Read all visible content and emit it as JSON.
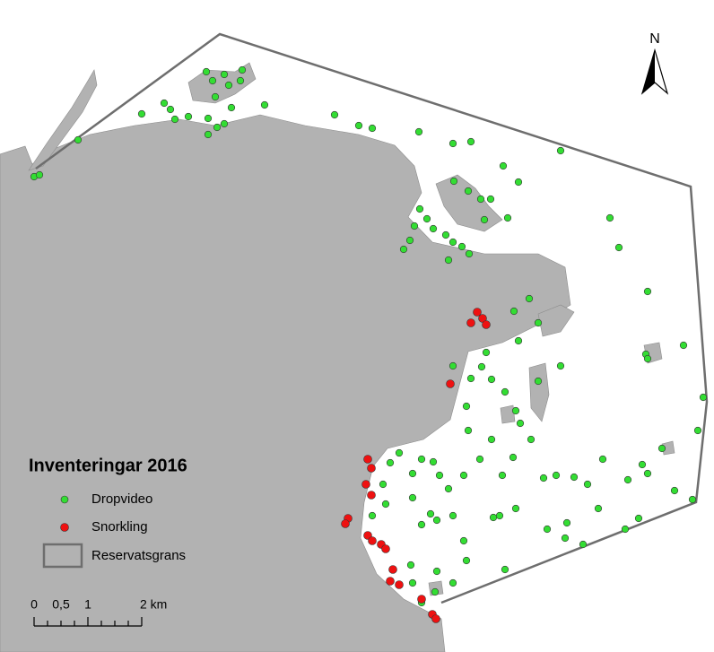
{
  "map": {
    "legend": {
      "title": "Inventeringar 2016",
      "items": [
        "Dropvideo",
        "Snorkling",
        "Reservatsgrans"
      ]
    },
    "scale_bar": {
      "labels": [
        "0",
        "0,5",
        "1",
        "2 km"
      ]
    },
    "north_arrow": {
      "label": "N"
    }
  }
}
